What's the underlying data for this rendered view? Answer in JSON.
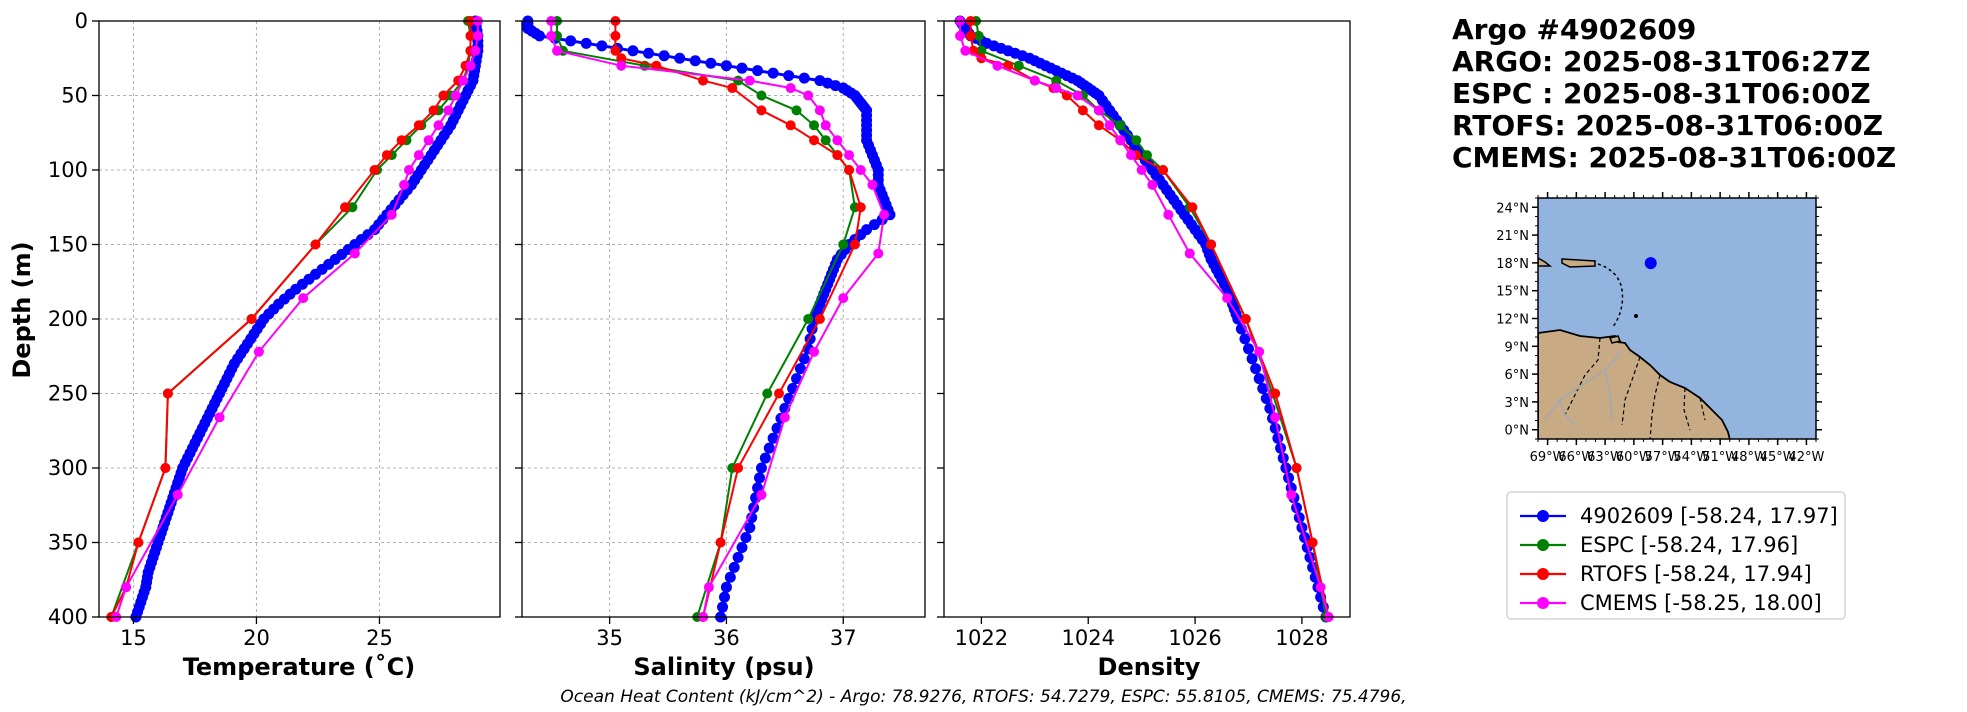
{
  "header": {
    "float_id": "Argo #4902609",
    "argo_time": "ARGO: 2025-08-31T06:27Z",
    "espc_time": "ESPC : 2025-08-31T06:00Z",
    "rtofs_time": "RTOFS: 2025-08-31T06:00Z",
    "cmems_time": "CMEMS: 2025-08-31T06:00Z"
  },
  "footer": {
    "ohc": "Ocean Heat Content (kJ/cm^2) - Argo: 78.9276,  RTOFS: 54.7279,  ESPC: 55.8105,  CMEMS: 75.4796,"
  },
  "colors": {
    "argo": "#0000ff",
    "espc": "#008000",
    "rtofs": "#ff0000",
    "cmems": "#ff00ff",
    "ocean": "#94b4e0",
    "land": "#c8ab84"
  },
  "legend": [
    {
      "label": "4902609 [-58.24, 17.97]",
      "color": "#0000ff"
    },
    {
      "label": "ESPC [-58.24, 17.96]",
      "color": "#008000"
    },
    {
      "label": "RTOFS [-58.24, 17.94]",
      "color": "#ff0000"
    },
    {
      "label": "CMEMS [-58.25, 18.00]",
      "color": "#ff00ff"
    }
  ],
  "chart_data": [
    {
      "type": "line",
      "id": "temperature",
      "title": "",
      "xlabel": "Temperature (˚C)",
      "ylabel": "Depth (m)",
      "xlim": [
        13.6,
        29.9
      ],
      "ylim": [
        400,
        0
      ],
      "grid": true,
      "xticks": [
        15,
        20,
        25
      ],
      "yticks": [
        0,
        50,
        100,
        150,
        200,
        250,
        300,
        350,
        400
      ],
      "series": [
        {
          "name": "4902609",
          "color": "#0000ff",
          "dense": true,
          "depth": [
            0,
            10,
            20,
            30,
            40,
            50,
            60,
            70,
            80,
            90,
            100,
            110,
            120,
            130,
            140,
            150,
            160,
            170,
            180,
            190,
            200,
            210,
            220,
            230,
            240,
            250,
            260,
            270,
            280,
            290,
            300,
            310,
            320,
            330,
            340,
            350,
            360,
            370,
            380,
            390,
            400
          ],
          "values": [
            28.9,
            29.0,
            29.0,
            28.9,
            28.8,
            28.5,
            28.2,
            27.9,
            27.5,
            27.1,
            26.7,
            26.3,
            25.8,
            25.3,
            24.8,
            24.0,
            23.2,
            22.4,
            21.6,
            20.9,
            20.3,
            19.9,
            19.5,
            19.1,
            18.8,
            18.5,
            18.2,
            17.9,
            17.6,
            17.3,
            17.0,
            16.8,
            16.6,
            16.4,
            16.2,
            16.0,
            15.8,
            15.6,
            15.5,
            15.3,
            15.1
          ]
        },
        {
          "name": "ESPC",
          "color": "#008000",
          "depth": [
            0,
            10,
            20,
            30,
            40,
            50,
            60,
            70,
            80,
            90,
            100,
            125,
            150,
            200,
            250,
            300,
            350,
            400
          ],
          "values": [
            28.6,
            28.7,
            28.7,
            28.6,
            28.4,
            27.9,
            27.4,
            26.7,
            26.1,
            25.5,
            24.9,
            23.9,
            22.4,
            19.8,
            16.4,
            16.3,
            15.2,
            14.1
          ]
        },
        {
          "name": "RTOFS",
          "color": "#ff0000",
          "depth": [
            0,
            10,
            20,
            30,
            40,
            50,
            60,
            70,
            80,
            90,
            100,
            125,
            150,
            200,
            250,
            300,
            350,
            380,
            400
          ],
          "values": [
            28.7,
            28.7,
            28.7,
            28.5,
            28.2,
            27.6,
            27.2,
            26.6,
            25.9,
            25.3,
            24.8,
            23.6,
            22.4,
            19.8,
            16.4,
            16.3,
            15.2,
            14.7,
            14.1
          ]
        },
        {
          "name": "CMEMS",
          "color": "#ff00ff",
          "depth": [
            0,
            10,
            20,
            30,
            40,
            50,
            60,
            70,
            80,
            90,
            100,
            110,
            130,
            156,
            186,
            222,
            266,
            318,
            380,
            400
          ],
          "values": [
            29.0,
            29.0,
            28.9,
            28.7,
            28.4,
            28.1,
            27.8,
            27.4,
            27.0,
            26.6,
            26.2,
            26.0,
            25.5,
            24.0,
            21.9,
            20.1,
            18.5,
            16.8,
            14.7,
            14.3
          ]
        }
      ]
    },
    {
      "type": "line",
      "id": "salinity",
      "title": "",
      "xlabel": "Salinity (psu)",
      "ylabel": "",
      "xlim": [
        34.25,
        37.7
      ],
      "ylim": [
        400,
        0
      ],
      "grid": true,
      "xticks": [
        35,
        36,
        37
      ],
      "yticks": [
        0,
        50,
        100,
        150,
        200,
        250,
        300,
        350,
        400
      ],
      "series": [
        {
          "name": "4902609",
          "color": "#0000ff",
          "dense": true,
          "depth": [
            0,
            5,
            10,
            15,
            20,
            25,
            30,
            35,
            40,
            45,
            50,
            55,
            60,
            70,
            80,
            90,
            100,
            110,
            120,
            130,
            140,
            150,
            160,
            170,
            180,
            190,
            200,
            220,
            240,
            260,
            280,
            300,
            320,
            340,
            360,
            380,
            400
          ],
          "values": [
            34.3,
            34.3,
            34.4,
            34.8,
            35.2,
            35.6,
            36.0,
            36.4,
            36.8,
            37.0,
            37.1,
            37.15,
            37.2,
            37.2,
            37.2,
            37.25,
            37.3,
            37.3,
            37.35,
            37.4,
            37.2,
            37.05,
            36.95,
            36.9,
            36.85,
            36.8,
            36.75,
            36.7,
            36.6,
            36.5,
            36.4,
            36.3,
            36.25,
            36.2,
            36.1,
            36.0,
            35.95
          ]
        },
        {
          "name": "ESPC",
          "color": "#008000",
          "depth": [
            0,
            10,
            20,
            30,
            40,
            50,
            60,
            70,
            80,
            90,
            100,
            125,
            150,
            200,
            250,
            300,
            350,
            400
          ],
          "values": [
            34.55,
            34.55,
            34.6,
            35.3,
            36.1,
            36.3,
            36.6,
            36.75,
            36.85,
            36.95,
            37.05,
            37.1,
            37.0,
            36.7,
            36.35,
            36.05,
            35.95,
            35.75
          ]
        },
        {
          "name": "RTOFS",
          "color": "#ff0000",
          "depth": [
            0,
            10,
            20,
            25,
            30,
            40,
            45,
            60,
            70,
            80,
            90,
            100,
            125,
            150,
            200,
            250,
            300,
            350,
            400
          ],
          "values": [
            35.05,
            35.05,
            35.05,
            35.1,
            35.4,
            35.8,
            36.05,
            36.3,
            36.55,
            36.75,
            36.95,
            37.05,
            37.15,
            37.1,
            36.8,
            36.45,
            36.1,
            35.95,
            35.8
          ]
        },
        {
          "name": "CMEMS",
          "color": "#ff00ff",
          "depth": [
            0,
            10,
            20,
            30,
            40,
            45,
            50,
            60,
            70,
            80,
            90,
            100,
            110,
            130,
            156,
            186,
            222,
            266,
            318,
            380,
            400
          ],
          "values": [
            34.5,
            34.5,
            34.55,
            35.1,
            36.2,
            36.55,
            36.7,
            36.8,
            36.85,
            36.95,
            37.05,
            37.15,
            37.25,
            37.35,
            37.3,
            37.0,
            36.75,
            36.5,
            36.3,
            35.85,
            35.8
          ]
        }
      ]
    },
    {
      "type": "line",
      "id": "density",
      "title": "",
      "xlabel": "Density",
      "ylabel": "",
      "xlim": [
        1021.3,
        1028.9
      ],
      "ylim": [
        400,
        0
      ],
      "grid": false,
      "xticks": [
        1022,
        1024,
        1026,
        1028
      ],
      "yticks": [
        0,
        50,
        100,
        150,
        200,
        250,
        300,
        350,
        400
      ],
      "series": [
        {
          "name": "4902609",
          "color": "#0000ff",
          "dense": true,
          "depth": [
            0,
            5,
            10,
            15,
            20,
            25,
            30,
            35,
            40,
            45,
            50,
            60,
            70,
            80,
            90,
            100,
            110,
            120,
            130,
            140,
            150,
            160,
            170,
            180,
            190,
            200,
            220,
            240,
            260,
            280,
            300,
            320,
            340,
            360,
            380,
            400
          ],
          "values": [
            1021.6,
            1021.7,
            1021.8,
            1022.1,
            1022.5,
            1022.9,
            1023.2,
            1023.5,
            1023.8,
            1024.0,
            1024.2,
            1024.4,
            1024.6,
            1024.8,
            1025.0,
            1025.2,
            1025.4,
            1025.6,
            1025.8,
            1026.0,
            1026.2,
            1026.3,
            1026.45,
            1026.6,
            1026.7,
            1026.8,
            1027.0,
            1027.2,
            1027.4,
            1027.55,
            1027.7,
            1027.85,
            1028.0,
            1028.15,
            1028.3,
            1028.45
          ]
        },
        {
          "name": "ESPC",
          "color": "#008000",
          "depth": [
            0,
            10,
            20,
            30,
            40,
            50,
            60,
            70,
            80,
            90,
            100,
            125,
            150,
            200,
            250,
            300,
            350,
            400
          ],
          "values": [
            1021.9,
            1021.95,
            1022.0,
            1022.7,
            1023.4,
            1023.9,
            1024.2,
            1024.6,
            1024.9,
            1025.1,
            1025.4,
            1025.9,
            1026.3,
            1026.95,
            1027.45,
            1027.9,
            1028.2,
            1028.45
          ]
        },
        {
          "name": "RTOFS",
          "color": "#ff0000",
          "depth": [
            0,
            10,
            20,
            25,
            30,
            40,
            45,
            50,
            60,
            70,
            80,
            90,
            100,
            125,
            150,
            200,
            250,
            300,
            350,
            400
          ],
          "values": [
            1021.8,
            1021.8,
            1021.85,
            1022.0,
            1022.5,
            1023.0,
            1023.35,
            1023.6,
            1023.9,
            1024.2,
            1024.6,
            1024.9,
            1025.4,
            1025.95,
            1026.3,
            1026.95,
            1027.5,
            1027.9,
            1028.2,
            1028.5
          ]
        },
        {
          "name": "CMEMS",
          "color": "#ff00ff",
          "depth": [
            0,
            10,
            20,
            30,
            40,
            45,
            50,
            60,
            70,
            80,
            90,
            100,
            110,
            130,
            156,
            186,
            222,
            266,
            318,
            380,
            400
          ],
          "values": [
            1021.6,
            1021.6,
            1021.7,
            1022.3,
            1023.0,
            1023.4,
            1023.8,
            1024.2,
            1024.4,
            1024.6,
            1024.8,
            1025.0,
            1025.2,
            1025.5,
            1025.9,
            1026.6,
            1027.2,
            1027.5,
            1027.8,
            1028.35,
            1028.5
          ]
        }
      ]
    }
  ],
  "map": {
    "lon_ticks": [
      "69°W",
      "66°W",
      "63°W",
      "60°W",
      "57°W",
      "54°W",
      "51°W",
      "48°W",
      "45°W",
      "42°W"
    ],
    "lat_ticks": [
      "0°N",
      "3°N",
      "6°N",
      "9°N",
      "12°N",
      "15°N",
      "18°N",
      "21°N",
      "24°N"
    ],
    "lon_range": [
      -70,
      -41
    ],
    "lat_range": [
      -1,
      25
    ],
    "float_position": {
      "lon": -58.24,
      "lat": 17.97
    }
  }
}
